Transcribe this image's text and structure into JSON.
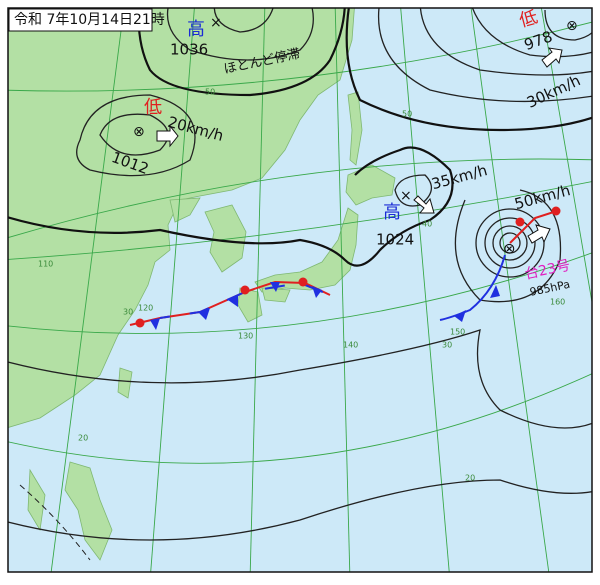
{
  "header": {
    "title": "令和 7年10月14日21時"
  },
  "systems": [
    {
      "kind": "高",
      "pressure": 1036,
      "note": "ほとんど停滞"
    },
    {
      "kind": "低",
      "pressure": 1012,
      "speed": "20km/h"
    },
    {
      "kind": "低",
      "pressure": 978,
      "speed": "30km/h"
    },
    {
      "kind": "高",
      "pressure": 1024,
      "speed": "35km/h"
    },
    {
      "kind": "台23号",
      "pressure": "985hPa",
      "speed": "50km/h"
    }
  ],
  "grid_labels": [
    "50",
    "50",
    "40",
    "30",
    "30",
    "20",
    "20",
    "110",
    "120",
    "130",
    "140",
    "150",
    "160"
  ]
}
